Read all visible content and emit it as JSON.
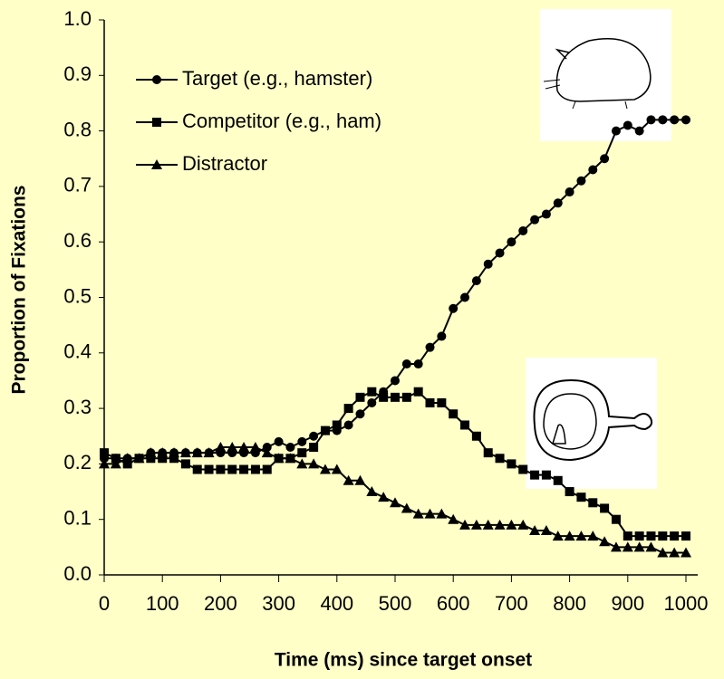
{
  "chart_data": {
    "type": "line",
    "x_label": "Time (ms) since target onset",
    "y_label": "Proportion of Fixations",
    "x": [
      0,
      20,
      40,
      60,
      80,
      100,
      120,
      140,
      160,
      180,
      200,
      220,
      240,
      260,
      280,
      300,
      320,
      340,
      360,
      380,
      400,
      420,
      440,
      460,
      480,
      500,
      520,
      540,
      560,
      580,
      600,
      620,
      640,
      660,
      680,
      700,
      720,
      740,
      760,
      780,
      800,
      820,
      840,
      860,
      880,
      900,
      920,
      940,
      960,
      980,
      1000
    ],
    "series": [
      {
        "name": "Target (e.g., hamster)",
        "color": "#000000",
        "marker": "circle",
        "values": [
          0.21,
          0.21,
          0.21,
          0.21,
          0.22,
          0.22,
          0.22,
          0.22,
          0.22,
          0.22,
          0.22,
          0.22,
          0.22,
          0.22,
          0.23,
          0.24,
          0.23,
          0.24,
          0.25,
          0.26,
          0.26,
          0.27,
          0.29,
          0.31,
          0.33,
          0.35,
          0.38,
          0.38,
          0.41,
          0.43,
          0.48,
          0.5,
          0.53,
          0.56,
          0.58,
          0.6,
          0.62,
          0.64,
          0.65,
          0.67,
          0.69,
          0.71,
          0.73,
          0.75,
          0.8,
          0.81,
          0.8,
          0.82,
          0.82,
          0.82,
          0.82
        ]
      },
      {
        "name": "Competitor (e.g., ham)",
        "color": "#000000",
        "marker": "square",
        "values": [
          0.22,
          0.21,
          0.2,
          0.21,
          0.21,
          0.21,
          0.21,
          0.2,
          0.19,
          0.19,
          0.19,
          0.19,
          0.19,
          0.19,
          0.19,
          0.21,
          0.21,
          0.22,
          0.23,
          0.26,
          0.27,
          0.3,
          0.32,
          0.33,
          0.32,
          0.32,
          0.32,
          0.33,
          0.31,
          0.31,
          0.29,
          0.27,
          0.25,
          0.22,
          0.21,
          0.2,
          0.19,
          0.18,
          0.18,
          0.17,
          0.15,
          0.14,
          0.13,
          0.12,
          0.1,
          0.07,
          0.07,
          0.07,
          0.07,
          0.07,
          0.07
        ]
      },
      {
        "name": "Distractor",
        "color": "#000000",
        "marker": "triangle",
        "values": [
          0.2,
          0.2,
          0.21,
          0.21,
          0.22,
          0.22,
          0.22,
          0.22,
          0.22,
          0.22,
          0.23,
          0.23,
          0.23,
          0.23,
          0.22,
          0.21,
          0.21,
          0.2,
          0.2,
          0.19,
          0.19,
          0.17,
          0.17,
          0.15,
          0.14,
          0.13,
          0.12,
          0.11,
          0.11,
          0.11,
          0.1,
          0.09,
          0.09,
          0.09,
          0.09,
          0.09,
          0.09,
          0.08,
          0.08,
          0.07,
          0.07,
          0.07,
          0.07,
          0.06,
          0.05,
          0.05,
          0.05,
          0.05,
          0.04,
          0.04,
          0.04
        ]
      }
    ],
    "xlim": [
      0,
      1000
    ],
    "xticks": [
      0,
      100,
      200,
      300,
      400,
      500,
      600,
      700,
      800,
      900,
      1000
    ],
    "ylim": [
      0,
      1.0
    ],
    "yticks": [
      {
        "value": 0,
        "label": "0.0"
      },
      0.1,
      0.2,
      0.3,
      0.4,
      0.5,
      0.6,
      0.7,
      0.8,
      0.9,
      {
        "value": 1.0,
        "label": "1.0"
      }
    ],
    "legend": "upper-left"
  }
}
